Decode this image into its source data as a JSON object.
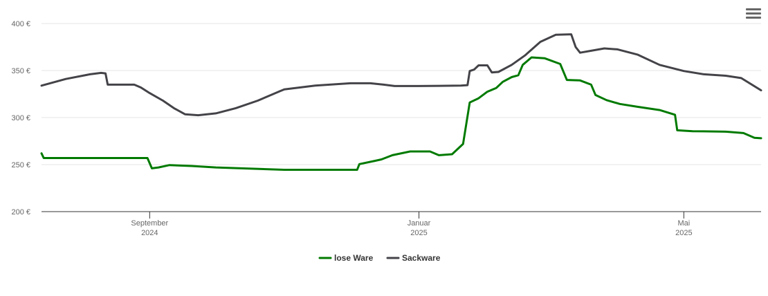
{
  "chart_data": {
    "type": "line",
    "title": "",
    "xlabel": "",
    "ylabel": "",
    "ylim": [
      200,
      400
    ],
    "y_ticks": [
      {
        "value": 200,
        "label": "200 €"
      },
      {
        "value": 250,
        "label": "250 €"
      },
      {
        "value": 300,
        "label": "300 €"
      },
      {
        "value": 350,
        "label": "350 €"
      },
      {
        "value": 400,
        "label": "400 €"
      }
    ],
    "xlim": [
      "2024-07-14",
      "2025-06-05"
    ],
    "x_ticks": [
      {
        "date": "2024-09-01",
        "line1": "September",
        "line2": "2024"
      },
      {
        "date": "2025-01-01",
        "line1": "Januar",
        "line2": "2025"
      },
      {
        "date": "2025-05-01",
        "line1": "Mai",
        "line2": "2025"
      }
    ],
    "grid": true,
    "legend_position": "bottom-center",
    "series": [
      {
        "name": "lose Ware",
        "color": "#007a00",
        "points": [
          [
            "2024-07-14",
            262
          ],
          [
            "2024-07-15",
            257
          ],
          [
            "2024-08-31",
            257
          ],
          [
            "2024-09-02",
            246
          ],
          [
            "2024-09-05",
            247
          ],
          [
            "2024-09-10",
            249.5
          ],
          [
            "2024-09-20",
            248.5
          ],
          [
            "2024-10-01",
            247
          ],
          [
            "2024-11-01",
            244.5
          ],
          [
            "2024-12-04",
            244.5
          ],
          [
            "2024-12-05",
            250.5
          ],
          [
            "2024-12-12",
            254
          ],
          [
            "2024-12-15",
            255.5
          ],
          [
            "2024-12-20",
            260
          ],
          [
            "2024-12-28",
            264
          ],
          [
            "2025-01-06",
            264
          ],
          [
            "2025-01-10",
            260
          ],
          [
            "2025-01-16",
            261
          ],
          [
            "2025-01-21",
            272
          ],
          [
            "2025-01-24",
            316
          ],
          [
            "2025-01-28",
            320.5
          ],
          [
            "2025-02-01",
            327.5
          ],
          [
            "2025-02-05",
            331.5
          ],
          [
            "2025-02-08",
            338
          ],
          [
            "2025-02-12",
            343
          ],
          [
            "2025-02-15",
            345
          ],
          [
            "2025-02-17",
            356
          ],
          [
            "2025-02-21",
            364
          ],
          [
            "2025-02-27",
            363
          ],
          [
            "2025-03-06",
            357
          ],
          [
            "2025-03-09",
            340
          ],
          [
            "2025-03-15",
            339.5
          ],
          [
            "2025-03-20",
            335
          ],
          [
            "2025-03-22",
            324
          ],
          [
            "2025-03-27",
            318.5
          ],
          [
            "2025-04-02",
            314.5
          ],
          [
            "2025-04-10",
            311.5
          ],
          [
            "2025-04-20",
            308
          ],
          [
            "2025-04-27",
            303
          ],
          [
            "2025-04-28",
            286.5
          ],
          [
            "2025-05-05",
            285.5
          ],
          [
            "2025-05-20",
            285
          ],
          [
            "2025-05-28",
            283.5
          ],
          [
            "2025-06-02",
            278.5
          ],
          [
            "2025-06-05",
            278
          ]
        ]
      },
      {
        "name": "Sackware",
        "color": "#434348",
        "points": [
          [
            "2024-07-14",
            334
          ],
          [
            "2024-07-25",
            341
          ],
          [
            "2024-08-05",
            346
          ],
          [
            "2024-08-10",
            347.5
          ],
          [
            "2024-08-12",
            347
          ],
          [
            "2024-08-13",
            335
          ],
          [
            "2024-08-25",
            335
          ],
          [
            "2024-08-28",
            332
          ],
          [
            "2024-09-01",
            326
          ],
          [
            "2024-09-07",
            318
          ],
          [
            "2024-09-12",
            310
          ],
          [
            "2024-09-17",
            303.5
          ],
          [
            "2024-09-23",
            302.5
          ],
          [
            "2024-10-01",
            304.5
          ],
          [
            "2024-10-10",
            310
          ],
          [
            "2024-10-20",
            318
          ],
          [
            "2024-10-30",
            328
          ],
          [
            "2024-11-01",
            330
          ],
          [
            "2024-11-15",
            334
          ],
          [
            "2024-12-01",
            336.5
          ],
          [
            "2024-12-10",
            336.5
          ],
          [
            "2024-12-16",
            335
          ],
          [
            "2024-12-21",
            333.5
          ],
          [
            "2025-01-01",
            333.5
          ],
          [
            "2025-01-20",
            334
          ],
          [
            "2025-01-23",
            334.5
          ],
          [
            "2025-01-24",
            349.5
          ],
          [
            "2025-01-26",
            351
          ],
          [
            "2025-01-28",
            355.5
          ],
          [
            "2025-02-01",
            355.5
          ],
          [
            "2025-02-03",
            348
          ],
          [
            "2025-02-06",
            348.5
          ],
          [
            "2025-02-12",
            356
          ],
          [
            "2025-02-18",
            366
          ],
          [
            "2025-02-25",
            380.5
          ],
          [
            "2025-03-04",
            388
          ],
          [
            "2025-03-11",
            388.5
          ],
          [
            "2025-03-13",
            375
          ],
          [
            "2025-03-15",
            369
          ],
          [
            "2025-03-20",
            371
          ],
          [
            "2025-03-26",
            373.5
          ],
          [
            "2025-04-01",
            372.5
          ],
          [
            "2025-04-10",
            367
          ],
          [
            "2025-04-20",
            356
          ],
          [
            "2025-05-01",
            349.5
          ],
          [
            "2025-05-10",
            346
          ],
          [
            "2025-05-20",
            344.5
          ],
          [
            "2025-05-27",
            342
          ],
          [
            "2025-06-05",
            329
          ]
        ]
      }
    ]
  }
}
